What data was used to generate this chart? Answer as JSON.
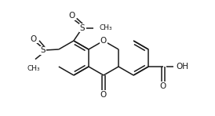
{
  "bg_color": "#ffffff",
  "line_color": "#1a1a1a",
  "line_width": 1.1,
  "figsize": [
    2.74,
    1.48
  ],
  "dpi": 100,
  "xlim": [
    0,
    274
  ],
  "ylim": [
    0,
    148
  ]
}
